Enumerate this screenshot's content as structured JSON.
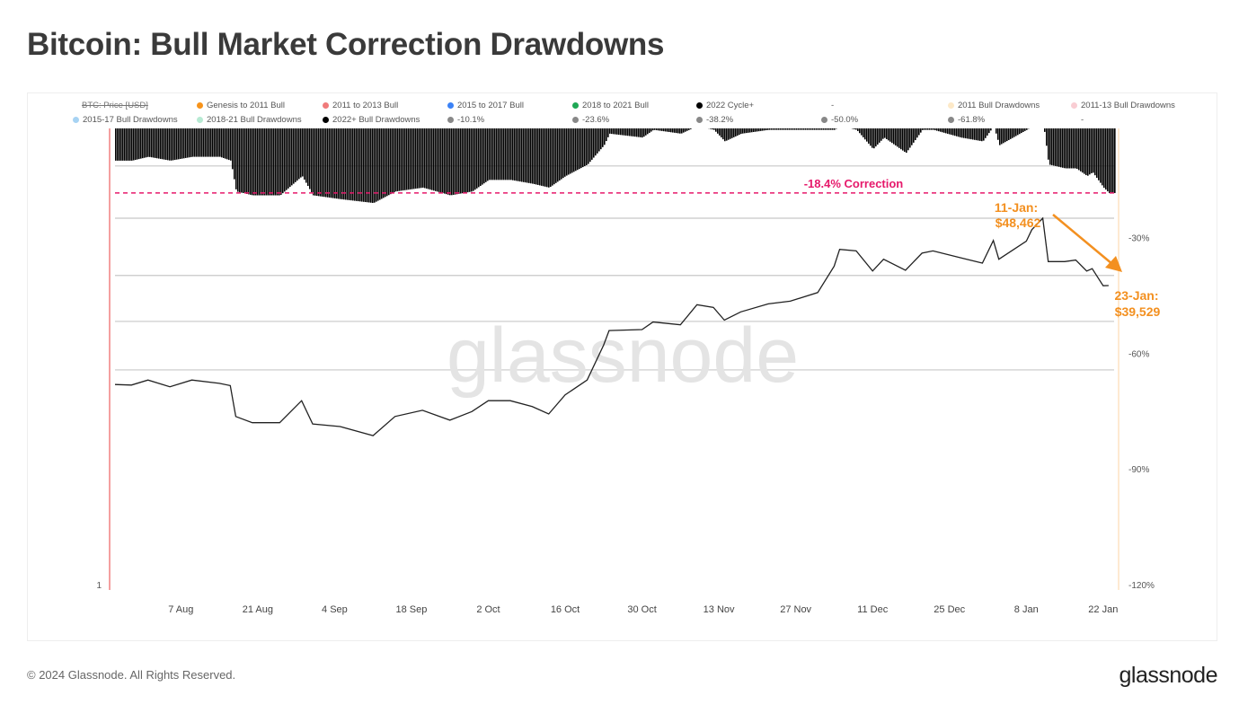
{
  "title": "Bitcoin: Bull Market Correction Drawdowns",
  "footer": "© 2024 Glassnode. All Rights Reserved.",
  "logo": "glassnode",
  "watermark": "glassnode",
  "legend": {
    "row1": [
      {
        "label": "BTC: Price [USD]",
        "color": "",
        "struck": true
      },
      {
        "label": "Genesis to 2011 Bull",
        "color": "#f7931a"
      },
      {
        "label": "2011 to 2013 Bull",
        "color": "#f07b7b"
      },
      {
        "label": "2015 to 2017 Bull",
        "color": "#3b82f6"
      },
      {
        "label": "2018 to 2021 Bull",
        "color": "#1fa855"
      },
      {
        "label": "2022 Cycle+",
        "color": "#000000"
      },
      {
        "label": "-",
        "color": ""
      },
      {
        "label": "2011 Bull Drawdowns",
        "color": "#fde9c8"
      },
      {
        "label": "2011-13 Bull Drawdowns",
        "color": "#f9cdd3"
      }
    ],
    "row2": [
      {
        "label": "2015-17 Bull Drawdowns",
        "color": "#a7d3f3"
      },
      {
        "label": "2018-21 Bull Drawdowns",
        "color": "#b7ead3"
      },
      {
        "label": "2022+ Bull Drawdowns",
        "color": "#000000"
      },
      {
        "label": "-10.1%",
        "color": "#888888"
      },
      {
        "label": "-23.6%",
        "color": "#888888"
      },
      {
        "label": "-38.2%",
        "color": "#888888"
      },
      {
        "label": "-50.0%",
        "color": "#888888"
      },
      {
        "label": "-61.8%",
        "color": "#888888"
      },
      {
        "label": "-",
        "color": ""
      }
    ]
  },
  "chart_data": {
    "type": "line",
    "title": "Bitcoin: Bull Market Correction Drawdowns",
    "y_scale": "log",
    "left_axis_ticks": [
      "1"
    ],
    "right_axis_ticks": [
      "-30%",
      "-60%",
      "-90%",
      "-120%"
    ],
    "right_axis_range": [
      0,
      -120
    ],
    "x_ticks": [
      "7 Aug",
      "21 Aug",
      "4 Sep",
      "18 Sep",
      "2 Oct",
      "16 Oct",
      "30 Oct",
      "13 Nov",
      "27 Nov",
      "11 Dec",
      "25 Dec",
      "8 Jan",
      "22 Jan"
    ],
    "x_tick_dates": [
      "2023-08-07",
      "2023-08-21",
      "2023-09-04",
      "2023-09-18",
      "2023-10-02",
      "2023-10-16",
      "2023-10-30",
      "2023-11-13",
      "2023-11-27",
      "2023-12-11",
      "2023-12-25",
      "2024-01-08",
      "2024-01-22"
    ],
    "xlim": [
      "2023-07-26",
      "2024-01-23"
    ],
    "grid": false,
    "legend_position": "top",
    "series": [
      {
        "name": "BTC: Price [USD]",
        "color": "#222222",
        "axis": "left",
        "x": [
          "2023-07-26",
          "2023-07-29",
          "2023-08-01",
          "2023-08-05",
          "2023-08-09",
          "2023-08-14",
          "2023-08-16",
          "2023-08-17",
          "2023-08-20",
          "2023-08-25",
          "2023-08-29",
          "2023-08-31",
          "2023-09-05",
          "2023-09-11",
          "2023-09-15",
          "2023-09-20",
          "2023-09-25",
          "2023-09-29",
          "2023-10-02",
          "2023-10-06",
          "2023-10-10",
          "2023-10-13",
          "2023-10-16",
          "2023-10-20",
          "2023-10-23",
          "2023-10-24",
          "2023-10-30",
          "2023-11-01",
          "2023-11-06",
          "2023-11-09",
          "2023-11-12",
          "2023-11-14",
          "2023-11-17",
          "2023-11-22",
          "2023-11-26",
          "2023-12-01",
          "2023-12-04",
          "2023-12-05",
          "2023-12-08",
          "2023-12-11",
          "2023-12-13",
          "2023-12-17",
          "2023-12-20",
          "2023-12-22",
          "2023-12-27",
          "2023-12-31",
          "2024-01-02",
          "2024-01-03",
          "2024-01-08",
          "2024-01-09",
          "2024-01-11",
          "2024-01-12",
          "2024-01-15",
          "2024-01-17",
          "2024-01-19",
          "2024-01-20",
          "2024-01-22",
          "2024-01-23"
        ],
        "values": [
          29300,
          29250,
          29700,
          29100,
          29700,
          29400,
          29200,
          26600,
          26100,
          26100,
          27900,
          26000,
          25800,
          25100,
          26600,
          27100,
          26300,
          27000,
          27900,
          27900,
          27400,
          26800,
          28400,
          29700,
          33000,
          34500,
          34600,
          35400,
          35100,
          37300,
          37000,
          35600,
          36500,
          37400,
          37700,
          38700,
          41900,
          44100,
          43900,
          41300,
          42800,
          41400,
          43600,
          43900,
          43000,
          42300,
          45300,
          42800,
          45200,
          46800,
          48462,
          42500,
          42500,
          42700,
          41300,
          41600,
          39500,
          39529
        ]
      },
      {
        "name": "2022+ Bull Drawdowns",
        "color": "#000000",
        "axis": "right",
        "type": "bar",
        "values": [
          -10,
          -10,
          -9,
          -10,
          -9,
          -9,
          -10,
          -18,
          -19,
          -19,
          -14,
          -19,
          -20,
          -21,
          -18,
          -17,
          -19,
          -18,
          -15,
          -15,
          -16,
          -17,
          -14,
          -11,
          -6,
          -3,
          -4,
          -2,
          -3,
          -1,
          -2,
          -5,
          -3,
          -2,
          -2,
          -2,
          -2,
          -1,
          -2,
          -7,
          -4,
          -8,
          -2,
          -2,
          -4,
          -5,
          -1,
          -6,
          -2,
          -1,
          0,
          -11,
          -12,
          -12,
          -14,
          -13,
          -17,
          -18.4
        ]
      }
    ],
    "level_lines": [
      {
        "label": "-10.1%",
        "price": 56760
      },
      {
        "label": "-23.6%",
        "price": 48460
      },
      {
        "label": "-38.2%",
        "price": 40750
      },
      {
        "label": "-50.0%",
        "price": 35460
      },
      {
        "label": "-61.8%",
        "price": 30620
      }
    ],
    "annotations": {
      "correction": {
        "text": "-18.4% Correction",
        "value": -18.4,
        "color": "#e6196b"
      },
      "high": {
        "line1": "11-Jan:",
        "line2": "$48,462",
        "date": "2024-01-11",
        "price": 48462,
        "color": "#f39020"
      },
      "low": {
        "line1": "23-Jan:",
        "line2": "$39,529",
        "date": "2024-01-23",
        "price": 39529,
        "color": "#f39020"
      }
    }
  }
}
